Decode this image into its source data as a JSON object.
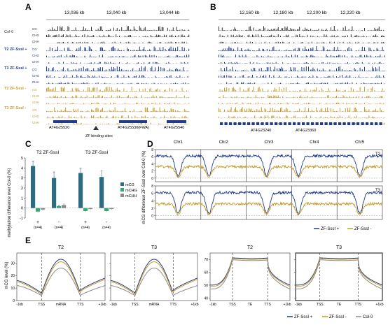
{
  "colors": {
    "black": "#333333",
    "navy": "#1f3b8a",
    "gold": "#c49a2a",
    "teal": "#2f6b80",
    "green": "#3aa57a",
    "gray": "#8a8a8a"
  },
  "panelA": {
    "letter": "A",
    "coords": [
      "13,036 kb",
      "13,040 kb",
      "13,044 kb"
    ],
    "groups": [
      "Col-0",
      "T2 ZF-SssI +",
      "T3 ZF-SssI +",
      "T2 ZF-SssI -",
      "T3 ZF-SssI -"
    ],
    "tracks": [
      "CG",
      "CHG",
      "CHH"
    ],
    "genes": [
      "AT4G25520",
      "AT4G25530(FWA)",
      "AT4G25540"
    ],
    "zf_label": "ZF binding sites"
  },
  "panelB": {
    "letter": "B",
    "coords": [
      "12,160 kb",
      "12,180 kb",
      "12,200 kb",
      "12,220 kb"
    ],
    "genes": [
      "AT4G23240",
      "AT4G23360"
    ]
  },
  "chart_data": [
    {
      "type": "bar",
      "panel": "C",
      "ylabel": "methylation difference over Col-0 (%)",
      "ylim": [
        -1,
        5
      ],
      "yticks": [
        -1,
        0,
        1,
        2,
        3,
        4,
        5
      ],
      "group_titles": [
        "T2 ZF-SssI",
        "T3 ZF-SssI"
      ],
      "categories": [
        "+",
        "-",
        "+",
        "-"
      ],
      "n_labels": [
        "(n=4)",
        "(n=4)",
        "(n=4)",
        "(n=4)"
      ],
      "series": [
        {
          "name": "mCG",
          "values": [
            4.2,
            3.0,
            3.5,
            3.1
          ],
          "errors": [
            0.5,
            0.6,
            0.5,
            0.6
          ]
        },
        {
          "name": "mCHG",
          "values": [
            -0.35,
            0.2,
            -0.3,
            -0.3
          ],
          "errors": [
            0.1,
            0.1,
            0.1,
            0.1
          ]
        },
        {
          "name": "mCHH",
          "values": [
            -0.15,
            0.3,
            -0.1,
            -0.1
          ],
          "errors": [
            0.1,
            0.1,
            0.1,
            0.1
          ]
        }
      ]
    },
    {
      "type": "line",
      "panel": "D",
      "ylabel": "mCG difference ZF-SssI over Col-0 (%)",
      "chromosomes": [
        "Chr1",
        "Chr2",
        "Chr3",
        "Chr4",
        "Chr5"
      ],
      "rows": [
        "T2",
        "T3"
      ],
      "yticks": [
        0,
        2,
        4,
        6,
        8
      ],
      "ylim": [
        -1,
        8
      ],
      "legend": [
        "ZF-SssI +",
        "ZF-SssI -"
      ]
    },
    {
      "type": "line",
      "panel": "E",
      "ylabel": "mCG level (%)",
      "subpanels": [
        {
          "title": "T2",
          "xticks": [
            "-1kb",
            "TSS",
            "mRNA",
            "TTS",
            "+1kb"
          ],
          "yticks": [
            0,
            10,
            20,
            30
          ],
          "ylim": [
            0,
            38
          ]
        },
        {
          "title": "T3",
          "xticks": [
            "-1kb",
            "TSS",
            "mRNA",
            "TTS",
            "+1kb"
          ],
          "yticks": [
            0,
            10,
            20,
            30
          ],
          "ylim": [
            0,
            38
          ]
        },
        {
          "title": "T2",
          "xticks": [
            "-1kb",
            "TSS",
            "TE",
            "TTS",
            "+1kb"
          ],
          "yticks": [
            40,
            50,
            60,
            70
          ],
          "ylim": [
            38,
            75
          ]
        },
        {
          "title": "T3",
          "xticks": [
            "-1kb",
            "TSS",
            "TE",
            "TTS",
            "+1kb"
          ],
          "yticks": [
            40,
            50,
            60,
            70
          ],
          "ylim": [
            38,
            75
          ]
        }
      ],
      "legend": [
        "ZF-SssI +",
        "ZF-SssI -",
        "Col-0"
      ]
    }
  ],
  "letters": {
    "C": "C",
    "D": "D",
    "E": "E"
  }
}
